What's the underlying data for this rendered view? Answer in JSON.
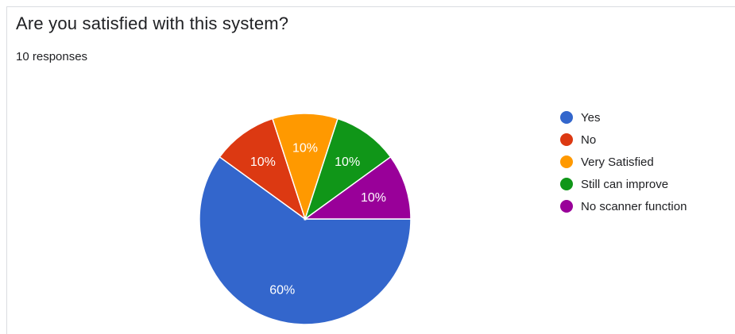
{
  "card": {
    "title": "Are you satisfied with this system?",
    "responses": "10 responses"
  },
  "chart_data": {
    "type": "pie",
    "title": "Are you satisfied with this system?",
    "total_responses": 10,
    "categories": [
      "Yes",
      "No",
      "Very Satisfied",
      "Still can improve",
      "No scanner function"
    ],
    "values": [
      6,
      1,
      1,
      1,
      1
    ],
    "labels": [
      "60%",
      "10%",
      "10%",
      "10%",
      "10%"
    ],
    "colors": [
      "#3366cc",
      "#dc3912",
      "#ff9900",
      "#109618",
      "#990099"
    ],
    "legend_position": "right"
  }
}
